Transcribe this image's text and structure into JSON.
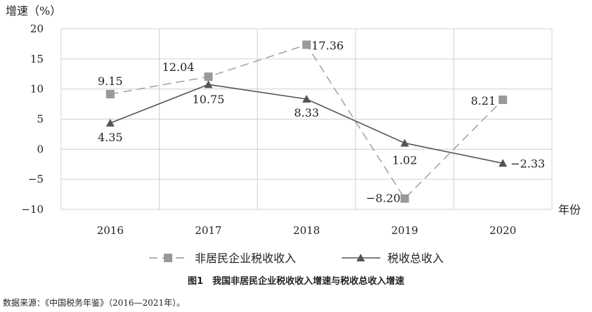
{
  "chart_data": {
    "type": "line",
    "ylabel": "增速（%）",
    "xlabel": "年份",
    "categories": [
      "2016",
      "2017",
      "2018",
      "2019",
      "2020"
    ],
    "ylim": [
      -10,
      20
    ],
    "yticks": [
      "20",
      "15",
      "10",
      "5",
      "0",
      "−5",
      "−10"
    ],
    "grid": true,
    "legend_position": "bottom",
    "series": [
      {
        "name": "非居民企业税收收入",
        "values": [
          9.15,
          12.04,
          17.36,
          -8.2,
          8.21
        ],
        "labels": [
          "9.15",
          "12.04",
          "17.36",
          "−8.20",
          "8.21"
        ],
        "color": "#999999",
        "marker": "square",
        "line": "dashed"
      },
      {
        "name": "税收总收入",
        "values": [
          4.35,
          10.75,
          8.33,
          1.02,
          -2.33
        ],
        "labels": [
          "4.35",
          "10.75",
          "8.33",
          "1.02",
          "−2.33"
        ],
        "color": "#555555",
        "marker": "triangle",
        "line": "solid"
      }
    ]
  },
  "caption": "图1　我国非居民企业税收收入增速与税收总收入增速",
  "source": "数据来源：《中国税务年鉴》（2016—2021年）。"
}
